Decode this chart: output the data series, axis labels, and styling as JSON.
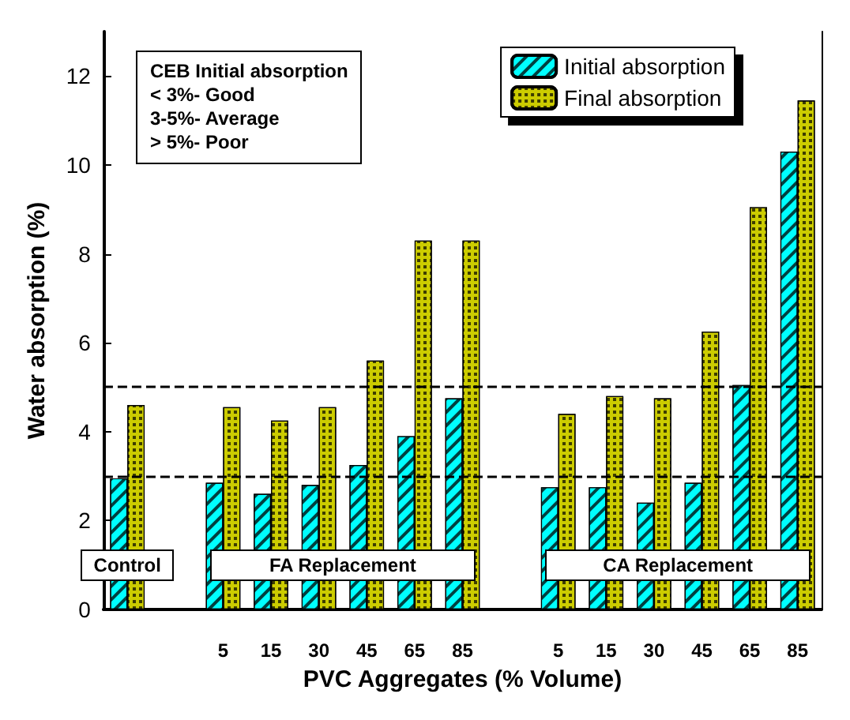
{
  "chart_data": {
    "type": "bar",
    "xlabel": "PVC Aggregates (% Volume)",
    "ylabel": "Water absorption (%)",
    "categories": [
      null,
      null,
      "5",
      "15",
      "30",
      "45",
      "65",
      "85",
      null,
      "5",
      "15",
      "30",
      "45",
      "65",
      "85"
    ],
    "series": [
      {
        "name": "Initial absorption",
        "color": "#00ffff",
        "values": [
          2.95,
          null,
          2.85,
          2.6,
          2.8,
          3.25,
          3.9,
          4.75,
          null,
          2.75,
          2.75,
          2.4,
          2.85,
          5.05,
          10.3
        ]
      },
      {
        "name": "Final absorption",
        "color": "#cccc00",
        "values": [
          4.6,
          null,
          4.55,
          4.25,
          4.55,
          5.6,
          8.3,
          8.3,
          null,
          4.4,
          4.8,
          4.75,
          6.25,
          9.05,
          11.45
        ]
      }
    ],
    "ylim": [
      0,
      13
    ],
    "yticks": [
      0,
      2,
      4,
      6,
      8,
      10,
      12
    ],
    "grid": false,
    "legend": "top right",
    "ref_lines": [
      {
        "axis": "y",
        "value": 3,
        "line_style": "dashed"
      },
      {
        "axis": "y",
        "value": 5,
        "line_style": "dashed"
      }
    ],
    "annotations": [
      "CEB Initial absorption",
      "< 3%- Good",
      "3-5%- Average",
      "> 5%- Poor",
      "Control",
      "FA Replacement",
      "CA Replacement"
    ]
  }
}
